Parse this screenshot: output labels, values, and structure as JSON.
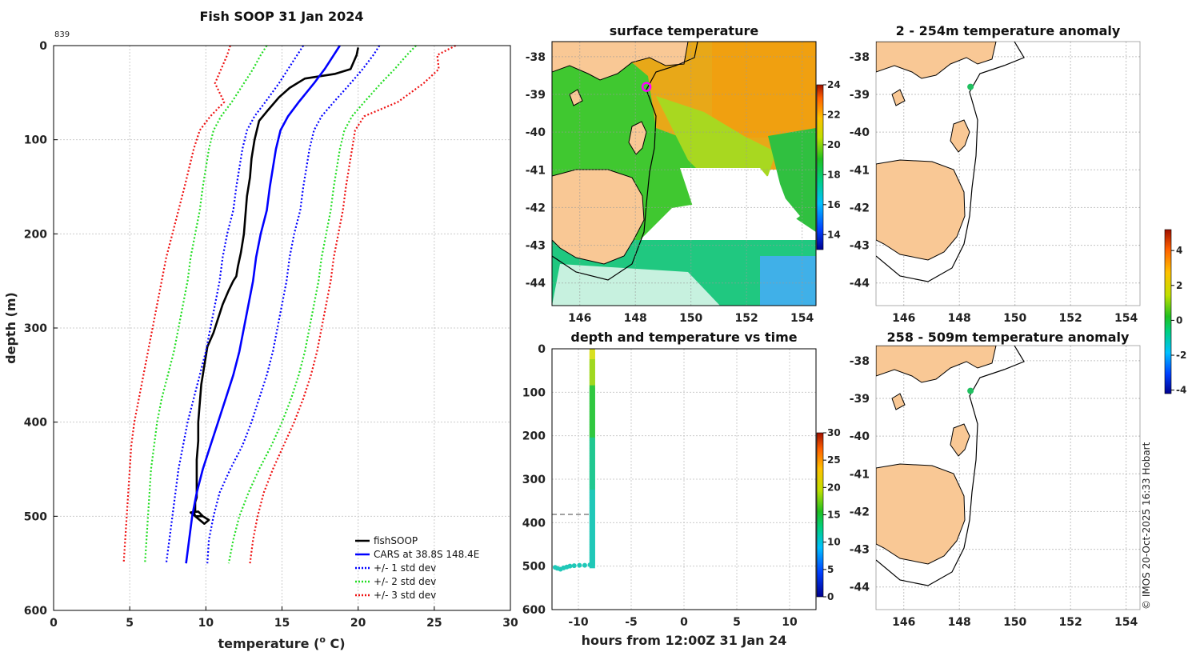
{
  "chart_data": [
    {
      "type": "line",
      "id": "profile",
      "title": "Fish SOOP 31 Jan 2024",
      "top_left_label": "839",
      "xlabel": "temperature (",
      "xlabel_sup": "o",
      "xlabel_tail": " C)",
      "ylabel": "depth (m)",
      "xlim": [
        0,
        30
      ],
      "ylim": [
        600,
        0
      ],
      "xticks": [
        "0",
        "5",
        "10",
        "15",
        "20",
        "25",
        "30"
      ],
      "yticks": [
        "0",
        "100",
        "200",
        "300",
        "400",
        "500",
        "600"
      ],
      "legend": [
        "fishSOOP",
        "CARS at 38.8S 148.4E",
        "+/- 1 std dev",
        "+/- 2 std dev",
        "+/- 3 std dev"
      ],
      "series": [
        {
          "name": "fishSOOP",
          "color": "#000000",
          "style": "solid",
          "x": [
            20.0,
            19.9,
            19.5,
            18.5,
            16.5,
            15.5,
            14.8,
            14.0,
            13.5,
            13.2,
            13.0,
            12.9,
            12.7,
            12.6,
            12.5,
            12.3,
            12.1,
            12.0,
            11.8,
            11.5,
            11.1,
            10.8,
            10.5,
            10.1,
            9.9,
            9.7,
            9.6,
            9.5,
            9.5,
            9.4,
            9.4,
            9.4,
            9.4,
            9.3,
            9.3,
            9.3,
            9.2,
            9.3,
            9.8,
            10.2,
            9.9,
            9.0,
            9.5,
            9.8
          ],
          "y": [
            2,
            10,
            25,
            30,
            35,
            45,
            55,
            70,
            80,
            100,
            120,
            140,
            160,
            180,
            200,
            220,
            235,
            245,
            250,
            260,
            275,
            290,
            305,
            320,
            340,
            360,
            380,
            400,
            420,
            440,
            460,
            470,
            480,
            485,
            490,
            495,
            495,
            500,
            500,
            504,
            508,
            496,
            495,
            500
          ]
        },
        {
          "name": "CARS mean",
          "color": "#0000ff",
          "style": "solid",
          "x": [
            18.8,
            18.4,
            17.8,
            17.1,
            16.1,
            15.4,
            14.9,
            14.6,
            14.4,
            14.2,
            14.0,
            13.6,
            13.3,
            13.1,
            12.8,
            12.5,
            12.2,
            11.8,
            11.3,
            10.8,
            10.3,
            9.8,
            9.4,
            9.1,
            8.9,
            8.7
          ],
          "y": [
            0,
            10,
            25,
            40,
            60,
            75,
            90,
            110,
            130,
            150,
            175,
            200,
            225,
            250,
            275,
            300,
            325,
            350,
            375,
            400,
            425,
            450,
            475,
            500,
            525,
            550
          ]
        },
        {
          "name": "CARS -1 std",
          "color": "#0000ff",
          "style": "dotted",
          "x": [
            16.4,
            16.0,
            15.4,
            14.8,
            13.9,
            13.2,
            12.7,
            12.4,
            12.2,
            12.0,
            11.8,
            11.4,
            11.1,
            10.9,
            10.6,
            10.3,
            10.0,
            9.6,
            9.2,
            8.8,
            8.5,
            8.2,
            8.0,
            7.8,
            7.6,
            7.4
          ],
          "y": [
            0,
            10,
            25,
            40,
            60,
            75,
            90,
            110,
            130,
            150,
            175,
            200,
            225,
            250,
            275,
            300,
            325,
            350,
            375,
            400,
            425,
            450,
            475,
            500,
            525,
            550
          ]
        },
        {
          "name": "CARS +1 std",
          "color": "#0000ff",
          "style": "dotted",
          "x": [
            21.4,
            21.0,
            20.3,
            19.5,
            18.4,
            17.6,
            17.1,
            16.8,
            16.6,
            16.4,
            16.2,
            15.8,
            15.5,
            15.3,
            15.0,
            14.7,
            14.4,
            14.0,
            13.5,
            13.0,
            12.4,
            11.6,
            10.9,
            10.5,
            10.2,
            10.1
          ],
          "y": [
            0,
            10,
            25,
            40,
            60,
            75,
            90,
            110,
            130,
            150,
            175,
            200,
            225,
            250,
            275,
            300,
            325,
            350,
            375,
            400,
            425,
            450,
            475,
            500,
            525,
            550
          ]
        },
        {
          "name": "CARS -2 std",
          "color": "#22dd22",
          "style": "dotted",
          "x": [
            14.0,
            13.6,
            13.1,
            12.5,
            11.7,
            11.0,
            10.5,
            10.2,
            10.0,
            9.8,
            9.6,
            9.3,
            9.0,
            8.8,
            8.5,
            8.2,
            7.9,
            7.5,
            7.1,
            6.8,
            6.6,
            6.4,
            6.3,
            6.2,
            6.1,
            6.0
          ],
          "y": [
            0,
            10,
            25,
            40,
            60,
            75,
            90,
            110,
            130,
            150,
            175,
            200,
            225,
            250,
            275,
            300,
            325,
            350,
            375,
            400,
            425,
            450,
            475,
            500,
            525,
            550
          ]
        },
        {
          "name": "CARS +2 std",
          "color": "#22dd22",
          "style": "dotted",
          "x": [
            23.8,
            23.2,
            22.4,
            21.5,
            20.4,
            19.6,
            19.1,
            18.8,
            18.6,
            18.4,
            18.2,
            17.9,
            17.6,
            17.4,
            17.1,
            16.8,
            16.5,
            16.1,
            15.6,
            15.0,
            14.3,
            13.5,
            12.8,
            12.2,
            11.8,
            11.5
          ],
          "y": [
            0,
            10,
            25,
            40,
            60,
            75,
            90,
            110,
            130,
            150,
            175,
            200,
            225,
            250,
            275,
            300,
            325,
            350,
            375,
            400,
            425,
            450,
            475,
            500,
            525,
            550
          ]
        },
        {
          "name": "CARS -3 std",
          "color": "#ee1111",
          "style": "dotted",
          "x": [
            11.6,
            11.4,
            11.0,
            10.6,
            11.2,
            10.3,
            9.6,
            9.2,
            8.9,
            8.6,
            8.2,
            7.8,
            7.4,
            7.1,
            6.8,
            6.5,
            6.2,
            5.9,
            5.6,
            5.3,
            5.1,
            5.0,
            4.9,
            4.8,
            4.7,
            4.6
          ],
          "y": [
            0,
            10,
            25,
            40,
            60,
            75,
            90,
            110,
            130,
            150,
            175,
            200,
            225,
            250,
            275,
            300,
            325,
            350,
            375,
            400,
            425,
            450,
            475,
            500,
            525,
            550
          ]
        },
        {
          "name": "CARS +3 std",
          "color": "#ee1111",
          "style": "dotted",
          "x": [
            26.4,
            25.2,
            25.3,
            24.3,
            22.6,
            20.4,
            19.8,
            19.6,
            19.4,
            19.2,
            19.0,
            18.7,
            18.4,
            18.2,
            17.9,
            17.6,
            17.3,
            16.9,
            16.4,
            15.8,
            15.1,
            14.4,
            13.8,
            13.4,
            13.1,
            12.9
          ],
          "y": [
            0,
            10,
            25,
            40,
            60,
            75,
            90,
            110,
            130,
            150,
            175,
            200,
            225,
            250,
            275,
            300,
            325,
            350,
            375,
            400,
            425,
            450,
            475,
            500,
            525,
            550
          ]
        }
      ]
    },
    {
      "type": "heatmap",
      "id": "sst_map",
      "title": "surface temperature",
      "xlim": [
        145,
        154.5
      ],
      "ylim": [
        -44.6,
        -37.6
      ],
      "xticks": [
        "146",
        "148",
        "150",
        "152",
        "154"
      ],
      "yticks": [
        "-38",
        "-39",
        "-40",
        "-41",
        "-42",
        "-43",
        "-44"
      ],
      "colorbar_range": [
        13,
        24
      ],
      "colorbar_ticks": [
        "14",
        "16",
        "18",
        "20",
        "22",
        "24"
      ],
      "marker": {
        "lon": 148.4,
        "lat": -38.8,
        "color": "#ff00ff"
      }
    },
    {
      "type": "scatter",
      "id": "depth_time",
      "title": "depth and temperature vs time",
      "xlabel": "hours from 12:00Z 31 Jan 24",
      "xlim": [
        -12.5,
        12.5
      ],
      "ylim": [
        600,
        0
      ],
      "xticks": [
        "-10",
        "-5",
        "0",
        "5",
        "10"
      ],
      "yticks": [
        "0",
        "100",
        "200",
        "300",
        "400",
        "500",
        "600"
      ],
      "dashed_depth": 381,
      "colorbar_range": [
        0,
        30
      ],
      "colorbar_ticks": [
        "0",
        "5",
        "10",
        "15",
        "20",
        "25",
        "30"
      ]
    },
    {
      "type": "heatmap",
      "id": "anom_shallow",
      "title": "2 - 254m temperature anomaly",
      "xlim": [
        145,
        154.5
      ],
      "ylim": [
        -44.6,
        -37.6
      ],
      "xticks": [
        "146",
        "148",
        "150",
        "152",
        "154"
      ],
      "yticks": [
        "-38",
        "-39",
        "-40",
        "-41",
        "-42",
        "-43",
        "-44"
      ],
      "point": {
        "lon": 148.4,
        "lat": -38.8,
        "anomaly": 0.3
      }
    },
    {
      "type": "heatmap",
      "id": "anom_deep",
      "title": "258 - 509m temperature anomaly",
      "xlim": [
        145,
        154.5
      ],
      "ylim": [
        -44.6,
        -37.6
      ],
      "xticks": [
        "146",
        "148",
        "150",
        "152",
        "154"
      ],
      "yticks": [
        "-38",
        "-39",
        "-40",
        "-41",
        "-42",
        "-43",
        "-44"
      ],
      "point": {
        "lon": 148.4,
        "lat": -38.8,
        "anomaly": 0.3
      },
      "colorbar_range": [
        -4.2,
        5.2
      ],
      "colorbar_ticks": [
        "-4",
        "-2",
        "0",
        "2",
        "4"
      ]
    }
  ],
  "credit": "© IMOS 20-Oct-2025 16:33 Hobart"
}
